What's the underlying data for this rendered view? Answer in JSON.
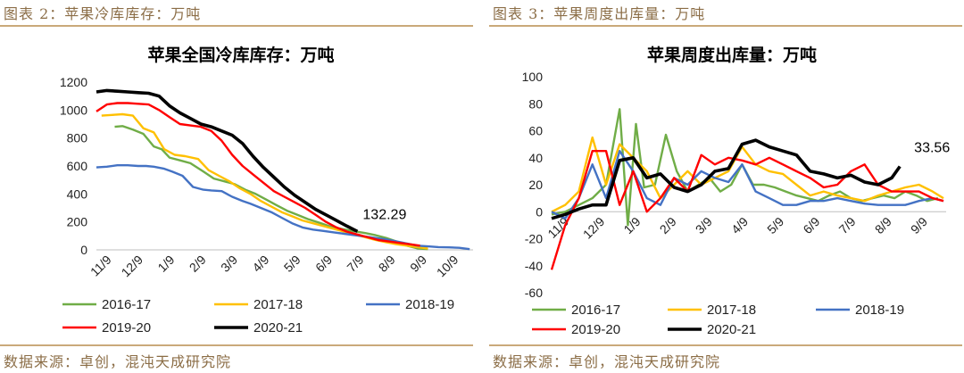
{
  "panels": [
    {
      "caption": "图表 2：苹果冷库库存：万吨",
      "source": "数据来源：卓创，混沌天成研究院"
    },
    {
      "caption": "图表 3：苹果周度出库量：万吨",
      "source": "数据来源：卓创，混沌天成研究院"
    }
  ],
  "chart_data": [
    {
      "type": "line",
      "title": "苹果全国冷库库存：万吨",
      "xlabel": "",
      "ylabel": "",
      "ylim": [
        0,
        1200
      ],
      "yticks": [
        0,
        200,
        400,
        600,
        800,
        1000,
        1200
      ],
      "xlim": [
        0,
        14.5
      ],
      "categories": [
        "11/9",
        "12/9",
        "1/9",
        "2/9",
        "3/9",
        "4/9",
        "5/9",
        "6/9",
        "7/9",
        "8/9",
        "9/9",
        "10/9"
      ],
      "grid": false,
      "legend": "bottom",
      "annotation": {
        "text": "132.29",
        "series": "2020-21"
      },
      "series": [
        {
          "name": "2016-17",
          "color": "#70ad47",
          "x": [
            0.7,
            1.0,
            1.4,
            1.8,
            2.2,
            2.5,
            2.8,
            3.2,
            3.6,
            4.1,
            4.5,
            4.9,
            5.3,
            5.7,
            6.1,
            6.5,
            6.9,
            7.3,
            7.7,
            8.1,
            8.6,
            9.0,
            9.4,
            9.8,
            10.3,
            10.7,
            11.1,
            11.5,
            11.9,
            12.3,
            12.7
          ],
          "y": [
            880,
            885,
            860,
            830,
            740,
            720,
            660,
            640,
            620,
            560,
            510,
            490,
            470,
            430,
            400,
            360,
            320,
            280,
            250,
            220,
            190,
            165,
            150,
            135,
            120,
            105,
            85,
            60,
            30,
            10,
            5
          ]
        },
        {
          "name": "2017-18",
          "color": "#ffc000",
          "x": [
            0.2,
            0.6,
            1.0,
            1.4,
            1.8,
            2.2,
            2.6,
            3.0,
            3.4,
            3.9,
            4.3,
            4.7,
            5.1,
            5.5,
            5.9,
            6.3,
            6.7,
            7.1,
            7.5,
            7.9,
            8.3,
            8.7,
            9.1,
            9.5,
            9.9,
            10.3,
            10.7,
            11.1,
            11.5,
            11.9,
            12.3,
            12.7
          ],
          "y": [
            960,
            965,
            970,
            960,
            870,
            840,
            720,
            680,
            670,
            650,
            570,
            530,
            490,
            440,
            400,
            350,
            310,
            270,
            240,
            210,
            190,
            170,
            150,
            130,
            110,
            90,
            70,
            55,
            40,
            30,
            20,
            10
          ]
        },
        {
          "name": "2018-19",
          "color": "#4472c4",
          "x": [
            0.0,
            0.4,
            0.8,
            1.2,
            1.6,
            1.9,
            2.2,
            2.6,
            2.9,
            3.3,
            3.7,
            4.1,
            4.4,
            4.8,
            5.2,
            5.6,
            5.9,
            6.3,
            6.7,
            7.1,
            7.5,
            7.9,
            8.3,
            8.7,
            9.1,
            9.5,
            9.9,
            10.3,
            10.7,
            11.1,
            11.5,
            11.9,
            12.3,
            12.7,
            13.1,
            13.5,
            13.9,
            14.3
          ],
          "y": [
            590,
            595,
            605,
            605,
            600,
            600,
            595,
            580,
            560,
            530,
            450,
            430,
            425,
            420,
            380,
            350,
            330,
            300,
            270,
            230,
            190,
            160,
            145,
            135,
            125,
            115,
            105,
            95,
            85,
            75,
            60,
            45,
            30,
            25,
            20,
            18,
            15,
            5
          ]
        },
        {
          "name": "2019-20",
          "color": "#ff0000",
          "x": [
            0.0,
            0.4,
            0.8,
            1.2,
            1.6,
            2.0,
            2.4,
            2.8,
            3.2,
            3.6,
            4.0,
            4.4,
            4.8,
            5.2,
            5.6,
            6.0,
            6.4,
            6.8,
            7.2,
            7.6,
            8.0,
            8.4,
            8.8,
            9.2,
            9.6,
            10.0,
            10.4,
            10.8,
            11.2,
            11.6,
            12.0,
            12.4
          ],
          "y": [
            990,
            1040,
            1050,
            1050,
            1045,
            1040,
            1000,
            950,
            900,
            890,
            880,
            850,
            780,
            680,
            600,
            540,
            480,
            420,
            380,
            340,
            300,
            250,
            200,
            160,
            130,
            110,
            90,
            70,
            60,
            50,
            40,
            30
          ]
        },
        {
          "name": "2020-21",
          "color": "#000000",
          "x": [
            0.0,
            0.4,
            0.8,
            1.2,
            1.6,
            2.0,
            2.4,
            2.8,
            3.2,
            3.6,
            4.0,
            4.4,
            4.8,
            5.2,
            5.6,
            6.0,
            6.4,
            6.8,
            7.2,
            7.6,
            8.0,
            8.4,
            8.8,
            9.2,
            9.6,
            10.0
          ],
          "y": [
            1130,
            1140,
            1135,
            1130,
            1125,
            1120,
            1100,
            1030,
            980,
            940,
            900,
            880,
            850,
            820,
            760,
            670,
            590,
            520,
            450,
            390,
            340,
            290,
            250,
            210,
            170,
            132.29
          ]
        }
      ]
    },
    {
      "type": "line",
      "title": "苹果周度出库量：万吨",
      "xlabel": "",
      "ylabel": "",
      "ylim": [
        -60,
        100
      ],
      "yticks": [
        -60,
        -40,
        -20,
        0,
        20,
        40,
        60,
        80,
        100
      ],
      "xlim": [
        0,
        14.5
      ],
      "categories": [
        "11/9",
        "12/9",
        "1/9",
        "2/9",
        "3/9",
        "4/9",
        "5/9",
        "6/9",
        "7/9",
        "8/9",
        "9/9"
      ],
      "grid": false,
      "legend": "bottom",
      "annotation": {
        "text": "33.56",
        "series": "2020-21"
      },
      "series": [
        {
          "name": "2016-17",
          "color": "#70ad47",
          "x": [
            0.0,
            0.5,
            1.0,
            1.5,
            2.0,
            2.5,
            2.8,
            3.1,
            3.4,
            3.8,
            4.2,
            4.6,
            5.0,
            5.4,
            5.8,
            6.2,
            6.6,
            7.0,
            7.4,
            7.8,
            8.2,
            8.6,
            9.0,
            9.4,
            9.8,
            10.2,
            10.6,
            11.0,
            11.4,
            11.8,
            12.2,
            12.6,
            13.0,
            13.4,
            13.8,
            14.2
          ],
          "y": [
            -2,
            0,
            5,
            10,
            20,
            76,
            -10,
            65,
            18,
            20,
            57,
            30,
            15,
            20,
            25,
            15,
            20,
            35,
            20,
            20,
            18,
            15,
            12,
            10,
            8,
            12,
            15,
            10,
            8,
            10,
            12,
            10,
            15,
            12,
            8,
            10
          ]
        },
        {
          "name": "2017-18",
          "color": "#ffc000",
          "x": [
            0.0,
            0.5,
            1.0,
            1.5,
            2.0,
            2.5,
            3.0,
            3.5,
            4.0,
            4.5,
            5.0,
            5.5,
            6.0,
            6.5,
            7.0,
            7.5,
            8.0,
            8.5,
            9.0,
            9.5,
            10.0,
            10.5,
            11.0,
            11.5,
            12.0,
            12.5,
            13.0,
            13.5,
            14.0,
            14.4
          ],
          "y": [
            0,
            5,
            15,
            55,
            20,
            50,
            40,
            30,
            10,
            20,
            30,
            20,
            25,
            30,
            48,
            35,
            30,
            28,
            20,
            12,
            15,
            12,
            10,
            8,
            12,
            15,
            18,
            20,
            15,
            10
          ]
        },
        {
          "name": "2018-19",
          "color": "#4472c4",
          "x": [
            0.0,
            0.5,
            1.0,
            1.5,
            2.0,
            2.5,
            3.0,
            3.5,
            4.0,
            4.5,
            5.0,
            5.5,
            6.0,
            6.5,
            7.0,
            7.5,
            8.0,
            8.5,
            9.0,
            9.5,
            10.0,
            10.5,
            11.0,
            11.5,
            12.0,
            12.5,
            13.0,
            13.5,
            14.0,
            14.4
          ],
          "y": [
            0,
            -5,
            10,
            35,
            10,
            45,
            30,
            10,
            5,
            25,
            20,
            30,
            25,
            22,
            35,
            15,
            10,
            5,
            5,
            8,
            8,
            10,
            8,
            6,
            5,
            5,
            5,
            8,
            10,
            8
          ]
        },
        {
          "name": "2019-20",
          "color": "#ff0000",
          "x": [
            0.0,
            0.5,
            1.0,
            1.5,
            2.0,
            2.5,
            3.0,
            3.5,
            4.0,
            4.5,
            5.0,
            5.5,
            6.0,
            6.5,
            7.0,
            7.5,
            8.0,
            8.5,
            9.0,
            9.5,
            10.0,
            10.5,
            11.0,
            11.5,
            12.0,
            12.5,
            13.0,
            13.5,
            14.0,
            14.4
          ],
          "y": [
            -43,
            -10,
            10,
            45,
            45,
            5,
            30,
            0,
            10,
            25,
            15,
            42,
            35,
            40,
            38,
            35,
            40,
            35,
            30,
            25,
            18,
            20,
            30,
            35,
            20,
            15,
            15,
            15,
            10,
            8
          ]
        },
        {
          "name": "2020-21",
          "color": "#000000",
          "x": [
            0.0,
            0.5,
            1.0,
            1.5,
            2.0,
            2.5,
            3.0,
            3.5,
            4.0,
            4.5,
            5.0,
            5.5,
            6.0,
            6.5,
            7.0,
            7.5,
            8.0,
            8.5,
            9.0,
            9.5,
            10.0,
            10.5,
            11.0,
            11.5,
            12.0,
            12.5,
            12.8
          ],
          "y": [
            -5,
            -2,
            2,
            5,
            5,
            38,
            40,
            25,
            28,
            18,
            15,
            20,
            30,
            32,
            50,
            53,
            48,
            45,
            42,
            30,
            28,
            25,
            27,
            22,
            20,
            25,
            33.56
          ]
        }
      ]
    }
  ]
}
